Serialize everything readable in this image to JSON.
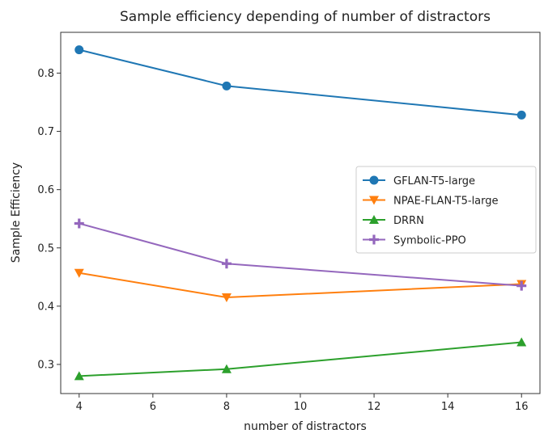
{
  "chart_data": {
    "type": "line",
    "title": "Sample efficiency depending of number of distractors",
    "xlabel": "number of distractors",
    "ylabel": "Sample Efficiency",
    "xlim": [
      3.5,
      16.5
    ],
    "ylim": [
      0.25,
      0.87
    ],
    "xticks": [
      4,
      6,
      8,
      10,
      12,
      14,
      16
    ],
    "yticks": [
      0.3,
      0.4,
      0.5,
      0.6,
      0.7,
      0.8
    ],
    "x": [
      4,
      8,
      16
    ],
    "grid": false,
    "legend_position": "center-right",
    "series": [
      {
        "name": "GFLAN-T5-large",
        "values": [
          0.84,
          0.778,
          0.728
        ],
        "color": "#1f77b4",
        "marker": "circle"
      },
      {
        "name": "NPAE-FLAN-T5-large",
        "values": [
          0.457,
          0.415,
          0.438
        ],
        "color": "#ff7f0e",
        "marker": "triangle-down"
      },
      {
        "name": "DRRN",
        "values": [
          0.28,
          0.292,
          0.338
        ],
        "color": "#2ca02c",
        "marker": "triangle-up"
      },
      {
        "name": "Symbolic-PPO",
        "values": [
          0.542,
          0.473,
          0.435
        ],
        "color": "#9467bd",
        "marker": "plus"
      }
    ]
  }
}
